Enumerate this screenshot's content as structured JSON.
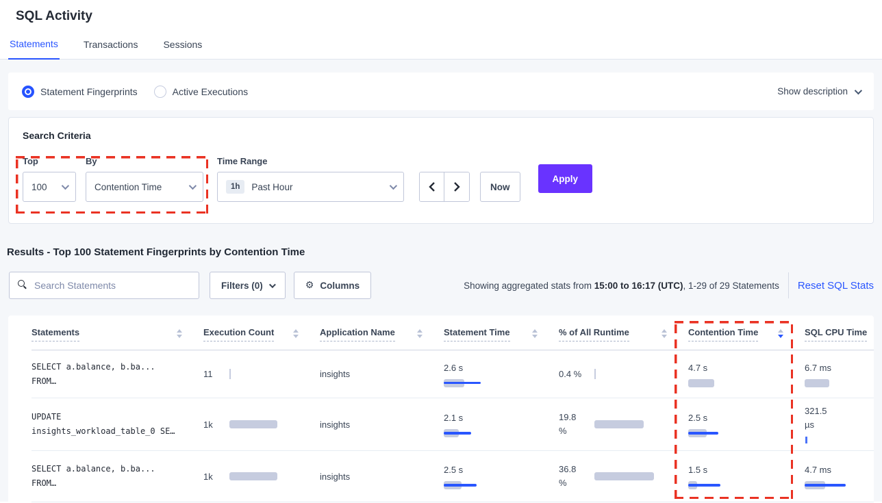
{
  "page": {
    "title": "SQL Activity"
  },
  "tabs": [
    {
      "label": "Statements",
      "active": true
    },
    {
      "label": "Transactions",
      "active": false
    },
    {
      "label": "Sessions",
      "active": false
    }
  ],
  "view_toggle": {
    "options": [
      {
        "label": "Statement Fingerprints",
        "selected": true
      },
      {
        "label": "Active Executions",
        "selected": false
      }
    ],
    "show_description": "Show description"
  },
  "search_criteria": {
    "heading": "Search Criteria",
    "top": {
      "label": "Top",
      "value": "100"
    },
    "by": {
      "label": "By",
      "value": "Contention Time"
    },
    "time_range": {
      "label": "Time Range",
      "badge": "1h",
      "value": "Past Hour"
    },
    "now_label": "Now",
    "apply_label": "Apply"
  },
  "results": {
    "heading": "Results - Top 100 Statement Fingerprints by Contention Time",
    "search_placeholder": "Search Statements",
    "filters_label": "Filters (0)",
    "columns_label": "Columns",
    "summary_prefix": "Showing aggregated stats from ",
    "summary_bold": "15:00 to 16:17 (UTC)",
    "summary_suffix": ", 1-29 of 29 Statements",
    "reset_label": "Reset SQL Stats"
  },
  "icons": {
    "gear": "⚙"
  },
  "table": {
    "columns": [
      {
        "label": "Statements",
        "sort": "both"
      },
      {
        "label": "Execution Count",
        "sort": "both"
      },
      {
        "label": "Application Name",
        "sort": "both"
      },
      {
        "label": "Statement Time",
        "sort": "both"
      },
      {
        "label": "% of All Runtime",
        "sort": "both"
      },
      {
        "label": "Contention Time",
        "sort": "desc"
      },
      {
        "label": "SQL CPU Time",
        "sort": "none"
      }
    ],
    "rows": [
      {
        "statement_lines": [
          "SELECT a.balance, b.ba...",
          "FROM…"
        ],
        "execution_count": {
          "value": "11",
          "bar": "tick"
        },
        "application": "insights",
        "statement_time": {
          "value": "2.6 s",
          "bar": 30,
          "line": 54
        },
        "runtime": {
          "value": "0.4 %",
          "bar": "tick"
        },
        "contention_time": {
          "value": "4.7 s",
          "bar": 38,
          "line": 0
        },
        "sql_cpu_time": {
          "value": "6.7 ms",
          "bar": 36,
          "line": 0
        }
      },
      {
        "statement_lines": [
          "UPDATE",
          "insights_workload_table_0 SE…"
        ],
        "execution_count": {
          "value": "1k",
          "bar": 70
        },
        "application": "insights",
        "statement_time": {
          "value": "2.1 s",
          "bar": 22,
          "line": 40
        },
        "runtime": {
          "value": "19.8\n%",
          "bar": 72
        },
        "contention_time": {
          "value": "2.5 s",
          "bar": 27,
          "line": 44
        },
        "sql_cpu_time": {
          "value": "321.5\nµs",
          "bar": 0,
          "line": 0,
          "tick": "blue"
        }
      },
      {
        "statement_lines": [
          "SELECT a.balance, b.ba...",
          "FROM…"
        ],
        "execution_count": {
          "value": "1k",
          "bar": 70
        },
        "application": "insights",
        "statement_time": {
          "value": "2.5 s",
          "bar": 26,
          "line": 48
        },
        "runtime": {
          "value": "36.8\n%",
          "bar": 87
        },
        "contention_time": {
          "value": "1.5 s",
          "bar": 13,
          "line": 47
        },
        "sql_cpu_time": {
          "value": "4.7 ms",
          "bar": 30,
          "line": 60
        }
      }
    ]
  },
  "colors": {
    "accent_blue": "#2955ff",
    "apply_purple": "#6933ff",
    "annotation_red": "#ea3223",
    "bar_gray": "#c6ccdf",
    "bar_line_blue": "#2956ff",
    "page_background": "#f5f7fa"
  }
}
